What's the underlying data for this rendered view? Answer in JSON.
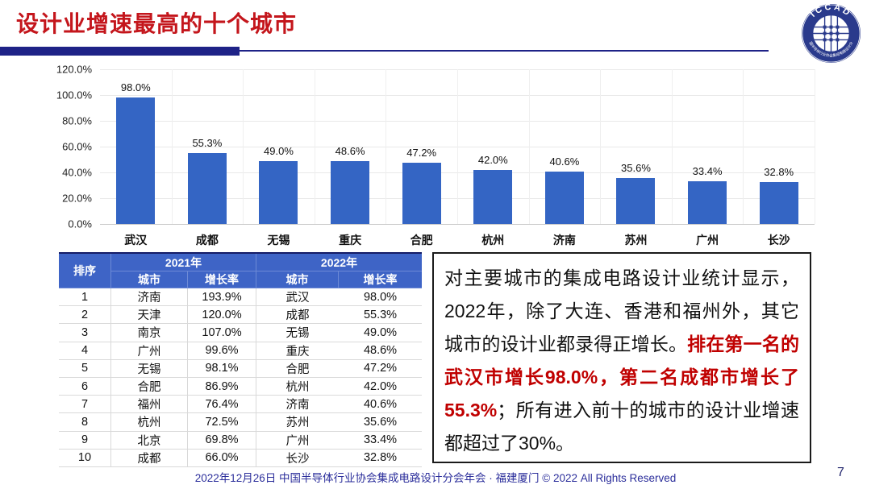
{
  "header": {
    "title": "设计业增速最高的十个城市",
    "logo": {
      "top_text": "ICCAD",
      "ring_text": "中国半导体行业协会集成电路设计分会"
    }
  },
  "chart_data": {
    "type": "bar",
    "categories": [
      "武汉",
      "成都",
      "无锡",
      "重庆",
      "合肥",
      "杭州",
      "济南",
      "苏州",
      "广州",
      "长沙"
    ],
    "values": [
      98.0,
      55.3,
      49.0,
      48.6,
      47.2,
      42.0,
      40.6,
      35.6,
      33.4,
      32.8
    ],
    "value_labels": [
      "98.0%",
      "55.3%",
      "49.0%",
      "48.6%",
      "47.2%",
      "42.0%",
      "40.6%",
      "35.6%",
      "33.4%",
      "32.8%"
    ],
    "title": "",
    "xlabel": "",
    "ylabel": "",
    "ylim": [
      0,
      120
    ],
    "ytick_labels": [
      "120.0%",
      "100.0%",
      "80.0%",
      "60.0%",
      "40.0%",
      "20.0%",
      "0.0%"
    ],
    "grid": true,
    "legend": "none",
    "bar_color": "#3465C4"
  },
  "table": {
    "header": {
      "rank": "排序",
      "year_2021": "2021年",
      "year_2022": "2022年",
      "city": "城市",
      "growth": "增长率"
    },
    "rows": [
      {
        "rank": "1",
        "city_2021": "济南",
        "growth_2021": "193.9%",
        "city_2022": "武汉",
        "growth_2022": "98.0%"
      },
      {
        "rank": "2",
        "city_2021": "天津",
        "growth_2021": "120.0%",
        "city_2022": "成都",
        "growth_2022": "55.3%"
      },
      {
        "rank": "3",
        "city_2021": "南京",
        "growth_2021": "107.0%",
        "city_2022": "无锡",
        "growth_2022": "49.0%"
      },
      {
        "rank": "4",
        "city_2021": "广州",
        "growth_2021": "99.6%",
        "city_2022": "重庆",
        "growth_2022": "48.6%"
      },
      {
        "rank": "5",
        "city_2021": "无锡",
        "growth_2021": "98.1%",
        "city_2022": "合肥",
        "growth_2022": "47.2%"
      },
      {
        "rank": "6",
        "city_2021": "合肥",
        "growth_2021": "86.9%",
        "city_2022": "杭州",
        "growth_2022": "42.0%"
      },
      {
        "rank": "7",
        "city_2021": "福州",
        "growth_2021": "76.4%",
        "city_2022": "济南",
        "growth_2022": "40.6%"
      },
      {
        "rank": "8",
        "city_2021": "杭州",
        "growth_2021": "72.5%",
        "city_2022": "苏州",
        "growth_2022": "35.6%"
      },
      {
        "rank": "9",
        "city_2021": "北京",
        "growth_2021": "69.8%",
        "city_2022": "广州",
        "growth_2022": "33.4%"
      },
      {
        "rank": "10",
        "city_2021": "成都",
        "growth_2021": "66.0%",
        "city_2022": "长沙",
        "growth_2022": "32.8%"
      }
    ]
  },
  "textbox": {
    "segments": [
      {
        "text": "对主要城市的集成电路设计业统计显示，2022年，除了大连、香港和福州外，其它城市的设计业都录得正增长。",
        "style": "normal"
      },
      {
        "text": "排在第一名的武汉市增长98.0%，第二名成都市增长了55.3%",
        "style": "red-bold"
      },
      {
        "text": "；所有进入前十的城市的设计业增速都超过了30%。",
        "style": "normal"
      }
    ]
  },
  "footer": {
    "text": "2022年12月26日 中国半导体行业协会集成电路设计分会年会 · 福建厦门 © 2022 All Rights Reserved",
    "page": "7"
  },
  "colors": {
    "title_red": "#C4161C",
    "accent_navy": "#1E2287",
    "bar_blue": "#3465C4",
    "table_header_blue": "#3E64C6",
    "text_red": "#C00000",
    "footer_navy": "#2B2E9B"
  }
}
